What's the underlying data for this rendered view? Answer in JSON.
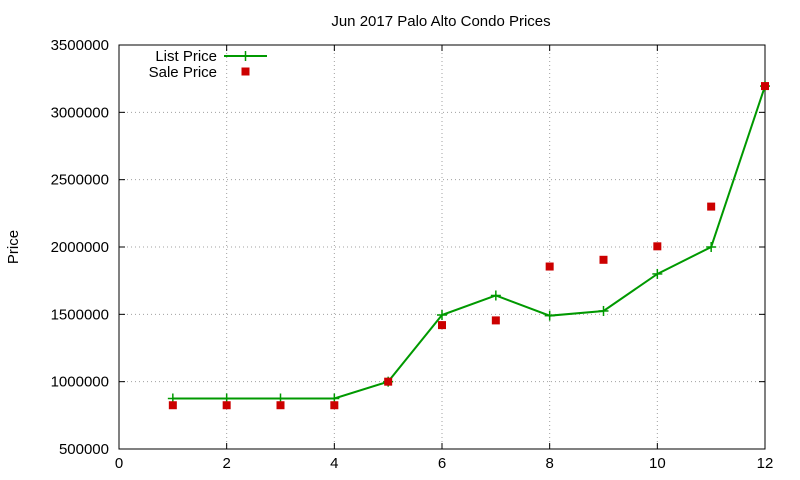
{
  "chart_data": {
    "type": "line",
    "title": "Jun 2017 Palo Alto Condo Prices",
    "xlabel": "",
    "ylabel": "Price",
    "xlim": [
      0,
      12
    ],
    "ylim": [
      500000,
      3500000
    ],
    "x_ticks": [
      0,
      2,
      4,
      6,
      8,
      10,
      12
    ],
    "y_ticks": [
      500000,
      1000000,
      1500000,
      2000000,
      2500000,
      3000000,
      3500000
    ],
    "grid": true,
    "legend_position": "top-left",
    "series": [
      {
        "name": "List Price",
        "style": "line-with-plus-markers",
        "color": "#009900",
        "x": [
          1,
          2,
          3,
          4,
          5,
          6,
          7,
          8,
          9,
          10,
          11,
          12
        ],
        "y": [
          875000,
          875000,
          875000,
          875000,
          1000000,
          1495000,
          1640000,
          1490000,
          1525000,
          1800000,
          2000000,
          3195000
        ]
      },
      {
        "name": "Sale Price",
        "style": "square-markers",
        "color": "#cc0000",
        "x": [
          1,
          2,
          3,
          4,
          5,
          6,
          7,
          8,
          9,
          10,
          11,
          12
        ],
        "y": [
          825000,
          825000,
          825000,
          825000,
          1000000,
          1420000,
          1455000,
          1855000,
          1905000,
          2005000,
          2300000,
          3195000
        ]
      }
    ]
  }
}
